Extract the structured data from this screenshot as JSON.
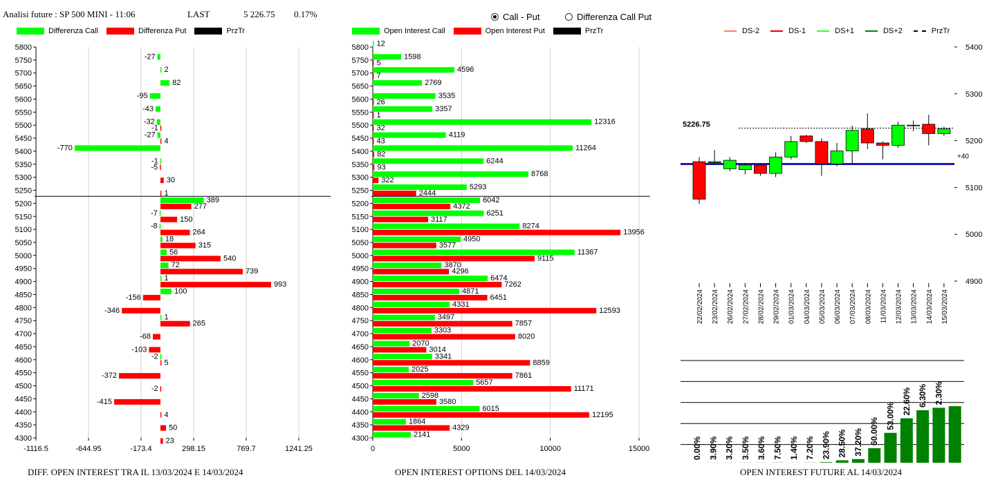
{
  "header": {
    "title": "Analisi future : SP 500 MINI - 11:06",
    "last_label": "LAST",
    "last_price": "5 226.75",
    "change_pct": "0.17%"
  },
  "mode_selector": {
    "options": [
      {
        "label": "Call - Put",
        "selected": true
      },
      {
        "label": "Differenza Call Put",
        "selected": false
      }
    ]
  },
  "colors": {
    "green": "#00ff00",
    "red": "#ff0000",
    "dark_green": "#008000",
    "blue": "#1b1bb3"
  },
  "chart_data": [
    {
      "type": "bar",
      "orientation": "horizontal",
      "caption": "DIFF. OPEN INTEREST TRA IL 13/03/2024 E 14/03/2024",
      "legend": [
        "Differenza Call",
        "Differenza Put",
        "PrzTr"
      ],
      "xlim": [
        -1116.5,
        1241.25
      ],
      "xticks": [
        "-1116.5",
        "-644.95",
        "-173.4",
        "298.15",
        "769.7",
        "1241.25"
      ],
      "xtick_values": [
        -1116.5,
        -644.95,
        -173.4,
        298.15,
        769.7,
        1241.25
      ],
      "strikes": [
        5800,
        5750,
        5700,
        5650,
        5600,
        5550,
        5500,
        5450,
        5400,
        5350,
        5300,
        5250,
        5200,
        5150,
        5100,
        5050,
        5000,
        4950,
        4900,
        4850,
        4800,
        4750,
        4700,
        4650,
        4600,
        4550,
        4500,
        4450,
        4400,
        4350,
        4300
      ],
      "price_line": 5226.75,
      "series": [
        {
          "name": "Differenza Call",
          "values": [
            null,
            -27,
            2,
            82,
            -95,
            -43,
            -32,
            -27,
            -770,
            -1,
            null,
            null,
            389,
            -7,
            -8,
            18,
            56,
            72,
            1,
            100,
            null,
            1,
            null,
            null,
            -2,
            null,
            null,
            null,
            null,
            null,
            null
          ]
        },
        {
          "name": "Differenza Put",
          "values": [
            null,
            null,
            null,
            null,
            null,
            null,
            -1,
            4,
            null,
            -5,
            30,
            1,
            277,
            150,
            264,
            315,
            540,
            739,
            993,
            -156,
            -346,
            265,
            -68,
            -103,
            5,
            -372,
            -2,
            -415,
            4,
            50,
            23
          ]
        }
      ]
    },
    {
      "type": "bar",
      "orientation": "horizontal",
      "caption": "OPEN INTEREST OPTIONS DEL 14/03/2024",
      "legend": [
        "Open Interest Call",
        "Open Interest Put",
        "PrzTr"
      ],
      "xlim": [
        0,
        15000
      ],
      "xticks": [
        "0",
        "5000",
        "10000",
        "15000"
      ],
      "xtick_values": [
        0,
        5000,
        10000,
        15000
      ],
      "strikes": [
        5800,
        5750,
        5700,
        5650,
        5600,
        5550,
        5500,
        5450,
        5400,
        5350,
        5300,
        5250,
        5200,
        5150,
        5100,
        5050,
        5000,
        4950,
        4900,
        4850,
        4800,
        4750,
        4700,
        4650,
        4600,
        4550,
        4500,
        4450,
        4400,
        4350,
        4300
      ],
      "price_line": 5226.75,
      "series": [
        {
          "name": "Open Interest Call",
          "values": [
            12,
            1598,
            4596,
            2769,
            3535,
            3357,
            12316,
            4119,
            11264,
            6244,
            8768,
            5293,
            6042,
            6251,
            8274,
            4950,
            11367,
            3870,
            6474,
            4871,
            4331,
            3497,
            3303,
            2070,
            3341,
            2025,
            5657,
            2598,
            6015,
            1864,
            2141
          ]
        },
        {
          "name": "Open Interest Put",
          "values": [
            null,
            5,
            7,
            null,
            26,
            1,
            32,
            43,
            82,
            93,
            322,
            2444,
            4372,
            3117,
            13956,
            3577,
            9115,
            4296,
            7262,
            6451,
            12593,
            7857,
            8020,
            3014,
            8859,
            7861,
            11171,
            3580,
            12195,
            4329,
            null
          ]
        }
      ]
    },
    {
      "type": "candlestick",
      "legend": [
        "DS-2",
        "DS-1",
        "DS+1",
        "DS+2",
        "PrzTr"
      ],
      "ylim": [
        4900,
        5400
      ],
      "yticks": [
        "5400",
        "5300",
        "5200",
        "5100",
        "5000",
        "4900"
      ],
      "ytick_values": [
        5400,
        5300,
        5200,
        5100,
        5000,
        4900
      ],
      "last_price_label": "5226.75",
      "last_price": 5226.75,
      "support_level": 5150,
      "support_label": "+40",
      "candles": [
        {
          "date": "22/02/2024",
          "open": 5155,
          "high": 5165,
          "low": 5065,
          "close": 5075
        },
        {
          "date": "23/02/2024",
          "open": 5153,
          "high": 5180,
          "low": 5150,
          "close": 5155
        },
        {
          "date": "26/02/2024",
          "open": 5140,
          "high": 5165,
          "low": 5135,
          "close": 5158
        },
        {
          "date": "27/02/2024",
          "open": 5138,
          "high": 5152,
          "low": 5128,
          "close": 5148
        },
        {
          "date": "28/02/2024",
          "open": 5148,
          "high": 5150,
          "low": 5125,
          "close": 5130
        },
        {
          "date": "29/02/2024",
          "open": 5130,
          "high": 5175,
          "low": 5122,
          "close": 5165
        },
        {
          "date": "01/03/2024",
          "open": 5165,
          "high": 5210,
          "low": 5160,
          "close": 5198
        },
        {
          "date": "04/03/2024",
          "open": 5210,
          "high": 5212,
          "low": 5195,
          "close": 5198
        },
        {
          "date": "05/03/2024",
          "open": 5198,
          "high": 5205,
          "low": 5125,
          "close": 5150
        },
        {
          "date": "06/03/2024",
          "open": 5150,
          "high": 5195,
          "low": 5145,
          "close": 5178
        },
        {
          "date": "07/03/2024",
          "open": 5178,
          "high": 5232,
          "low": 5150,
          "close": 5222
        },
        {
          "date": "08/03/2024",
          "open": 5225,
          "high": 5258,
          "low": 5182,
          "close": 5195
        },
        {
          "date": "11/03/2024",
          "open": 5195,
          "high": 5198,
          "low": 5160,
          "close": 5190
        },
        {
          "date": "12/03/2024",
          "open": 5190,
          "high": 5240,
          "low": 5185,
          "close": 5233
        },
        {
          "date": "13/03/2024",
          "open": 5233,
          "high": 5243,
          "low": 5220,
          "close": 5233
        },
        {
          "date": "14/03/2024",
          "open": 5235,
          "high": 5255,
          "low": 5190,
          "close": 5215
        },
        {
          "date": "15/03/2024",
          "open": 5215,
          "high": 5230,
          "low": 5210,
          "close": 5225
        }
      ]
    },
    {
      "type": "bar",
      "caption": "OPEN INTEREST FUTURE AL 14/03/2024",
      "categories": [
        "22/02/2024",
        "23/02/2024",
        "26/02/2024",
        "27/02/2024",
        "28/02/2024",
        "29/02/2024",
        "01/03/2024",
        "04/03/2024",
        "05/03/2024",
        "06/03/2024",
        "07/03/2024",
        "08/03/2024",
        "11/03/2024",
        "12/03/2024",
        "13/03/2024",
        "14/03/2024",
        "15/03/2024"
      ],
      "values": [
        0.0,
        0.1,
        0.1,
        0.1,
        0.1,
        0.2,
        0.1,
        0.2,
        0.7,
        3.0,
        4.5,
        18.0,
        37.0,
        55.0,
        65.0,
        68.0,
        70.0
      ],
      "labels": [
        "0.00%",
        "3.90%",
        "3.20%",
        "3.50%",
        "3.60%",
        "7.50%",
        "1.40%",
        "7.20%",
        "23.90%",
        "28.50%",
        "37.20%",
        "60.00%",
        "53.00%",
        "22.60%",
        "6.30%",
        "2.30%",
        ""
      ],
      "ylim": [
        0,
        100
      ],
      "grid": true
    }
  ]
}
